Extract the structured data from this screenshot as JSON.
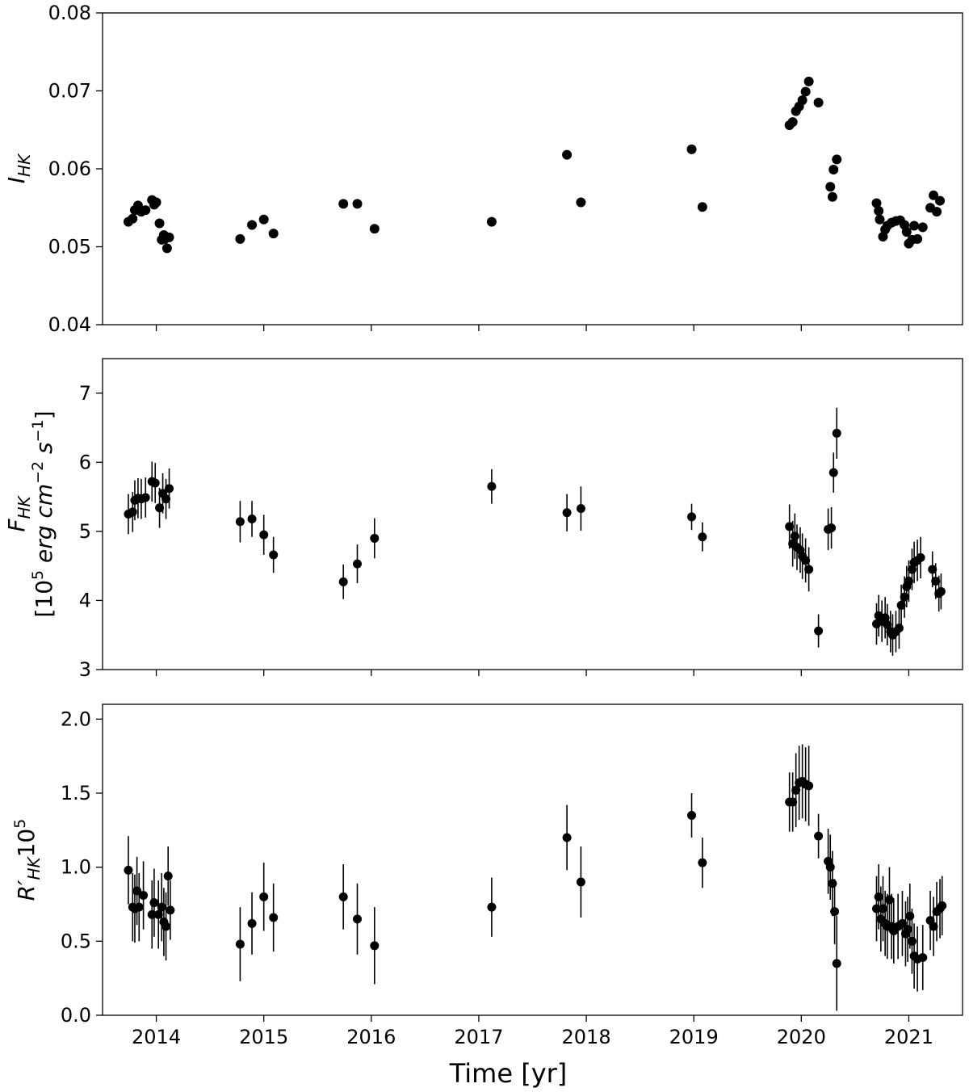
{
  "chart_data": [
    {
      "type": "scatter",
      "ylabel_parts": [
        "I",
        "HK"
      ],
      "ylim": [
        0.04,
        0.08
      ],
      "yticks": [
        "0.04",
        "0.05",
        "0.06",
        "0.07",
        "0.08"
      ],
      "xlim": [
        2013.5,
        2021.5
      ],
      "grid": false,
      "points": [
        [
          2013.74,
          0.0532
        ],
        [
          2013.78,
          0.0536
        ],
        [
          2013.8,
          0.0547
        ],
        [
          2013.83,
          0.0553
        ],
        [
          2013.86,
          0.0545
        ],
        [
          2013.9,
          0.0547
        ],
        [
          2013.96,
          0.056
        ],
        [
          2013.98,
          0.0554
        ],
        [
          2014.0,
          0.0557
        ],
        [
          2014.03,
          0.053
        ],
        [
          2014.05,
          0.0509
        ],
        [
          2014.07,
          0.0515
        ],
        [
          2014.1,
          0.0498
        ],
        [
          2014.12,
          0.0512
        ],
        [
          2014.08,
          0.051
        ],
        [
          2014.78,
          0.051
        ],
        [
          2014.89,
          0.0528
        ],
        [
          2015.0,
          0.0535
        ],
        [
          2015.09,
          0.0517
        ],
        [
          2015.74,
          0.0555
        ],
        [
          2015.87,
          0.0555
        ],
        [
          2016.03,
          0.0523
        ],
        [
          2017.12,
          0.0532
        ],
        [
          2017.82,
          0.0618
        ],
        [
          2017.95,
          0.0557
        ],
        [
          2018.98,
          0.0625
        ],
        [
          2019.08,
          0.0551
        ],
        [
          2019.89,
          0.0656
        ],
        [
          2019.92,
          0.066
        ],
        [
          2019.95,
          0.0674
        ],
        [
          2019.98,
          0.068
        ],
        [
          2020.01,
          0.0688
        ],
        [
          2020.04,
          0.0699
        ],
        [
          2020.07,
          0.0712
        ],
        [
          2020.16,
          0.0685
        ],
        [
          2020.27,
          0.0577
        ],
        [
          2020.29,
          0.0564
        ],
        [
          2020.3,
          0.0599
        ],
        [
          2020.33,
          0.0612
        ],
        [
          2020.7,
          0.0556
        ],
        [
          2020.72,
          0.0546
        ],
        [
          2020.73,
          0.0535
        ],
        [
          2020.76,
          0.0513
        ],
        [
          2020.78,
          0.0522
        ],
        [
          2020.8,
          0.0527
        ],
        [
          2020.84,
          0.0531
        ],
        [
          2020.88,
          0.0533
        ],
        [
          2020.92,
          0.0534
        ],
        [
          2020.96,
          0.0528
        ],
        [
          2020.98,
          0.0519
        ],
        [
          2021.0,
          0.0504
        ],
        [
          2021.03,
          0.0509
        ],
        [
          2021.05,
          0.0527
        ],
        [
          2021.08,
          0.051
        ],
        [
          2021.13,
          0.0525
        ],
        [
          2021.2,
          0.055
        ],
        [
          2021.23,
          0.0566
        ],
        [
          2021.26,
          0.0545
        ],
        [
          2021.29,
          0.0559
        ]
      ]
    },
    {
      "type": "scatter",
      "ylabel_parts": [
        "F",
        "HK",
        "[10",
        "5",
        " erg cm",
        "−2",
        " s",
        "−1",
        "]"
      ],
      "ylim": [
        3,
        7.5
      ],
      "yticks": [
        "3",
        "4",
        "5",
        "6",
        "7"
      ],
      "xlim": [
        2013.5,
        2021.5
      ],
      "grid": false,
      "points": [
        [
          2013.74,
          5.25,
          0.29
        ],
        [
          2013.78,
          5.28,
          0.29
        ],
        [
          2013.8,
          5.45,
          0.29
        ],
        [
          2013.83,
          5.48,
          0.29
        ],
        [
          2013.86,
          5.47,
          0.29
        ],
        [
          2013.9,
          5.49,
          0.29
        ],
        [
          2013.96,
          5.72,
          0.29
        ],
        [
          2013.99,
          5.7,
          0.29
        ],
        [
          2014.03,
          5.34,
          0.29
        ],
        [
          2014.06,
          5.55,
          0.29
        ],
        [
          2014.09,
          5.47,
          0.29
        ],
        [
          2014.12,
          5.62,
          0.29
        ],
        [
          2014.78,
          5.14,
          0.3
        ],
        [
          2014.89,
          5.18,
          0.26
        ],
        [
          2015.0,
          4.95,
          0.29
        ],
        [
          2015.09,
          4.66,
          0.26
        ],
        [
          2015.74,
          4.27,
          0.25
        ],
        [
          2015.87,
          4.53,
          0.28
        ],
        [
          2016.03,
          4.9,
          0.29
        ],
        [
          2017.12,
          5.65,
          0.25
        ],
        [
          2017.82,
          5.27,
          0.27
        ],
        [
          2017.95,
          5.33,
          0.32
        ],
        [
          2018.98,
          5.21,
          0.19
        ],
        [
          2019.08,
          4.92,
          0.21
        ],
        [
          2019.89,
          5.07,
          0.32
        ],
        [
          2019.92,
          4.82,
          0.33
        ],
        [
          2019.94,
          4.93,
          0.33
        ],
        [
          2019.96,
          4.77,
          0.33
        ],
        [
          2019.99,
          4.73,
          0.33
        ],
        [
          2020.01,
          4.64,
          0.33
        ],
        [
          2020.04,
          4.58,
          0.32
        ],
        [
          2020.07,
          4.45,
          0.32
        ],
        [
          2020.16,
          3.56,
          0.24
        ],
        [
          2020.25,
          5.03,
          0.3
        ],
        [
          2020.28,
          5.05,
          0.3
        ],
        [
          2020.3,
          5.85,
          0.29
        ],
        [
          2020.33,
          6.42,
          0.37
        ],
        [
          2020.7,
          3.66,
          0.3
        ],
        [
          2020.72,
          3.78,
          0.3
        ],
        [
          2020.75,
          3.7,
          0.3
        ],
        [
          2020.78,
          3.75,
          0.3
        ],
        [
          2020.8,
          3.65,
          0.3
        ],
        [
          2020.83,
          3.55,
          0.3
        ],
        [
          2020.85,
          3.5,
          0.3
        ],
        [
          2020.88,
          3.55,
          0.3
        ],
        [
          2020.91,
          3.6,
          0.3
        ],
        [
          2020.93,
          3.93,
          0.3
        ],
        [
          2020.96,
          4.05,
          0.3
        ],
        [
          2020.98,
          4.2,
          0.3
        ],
        [
          2021.0,
          4.28,
          0.3
        ],
        [
          2021.03,
          4.45,
          0.3
        ],
        [
          2021.05,
          4.55,
          0.3
        ],
        [
          2021.08,
          4.58,
          0.3
        ],
        [
          2021.11,
          4.62,
          0.3
        ],
        [
          2021.22,
          4.45,
          0.26
        ],
        [
          2021.25,
          4.28,
          0.26
        ],
        [
          2021.28,
          4.1,
          0.26
        ],
        [
          2021.3,
          4.13,
          0.26
        ]
      ]
    },
    {
      "type": "scatter",
      "ylabel_parts": [
        "R′",
        "HK",
        "10",
        "5"
      ],
      "ylim": [
        0.0,
        2.1
      ],
      "yticks": [
        "0.0",
        "0.5",
        "1.0",
        "1.5",
        "2.0"
      ],
      "xlim": [
        2013.5,
        2021.5
      ],
      "xticks": [
        "2014",
        "2015",
        "2016",
        "2017",
        "2018",
        "2019",
        "2020",
        "2021"
      ],
      "xlabel": "Time [yr]",
      "grid": false,
      "points": [
        [
          2013.74,
          0.98,
          0.23
        ],
        [
          2013.78,
          0.73,
          0.23
        ],
        [
          2013.8,
          0.72,
          0.23
        ],
        [
          2013.82,
          0.84,
          0.23
        ],
        [
          2013.84,
          0.73,
          0.23
        ],
        [
          2013.88,
          0.81,
          0.23
        ],
        [
          2013.96,
          0.68,
          0.23
        ],
        [
          2013.98,
          0.76,
          0.23
        ],
        [
          2014.02,
          0.68,
          0.23
        ],
        [
          2014.05,
          0.73,
          0.23
        ],
        [
          2014.07,
          0.63,
          0.23
        ],
        [
          2014.09,
          0.6,
          0.23
        ],
        [
          2014.11,
          0.94,
          0.2
        ],
        [
          2014.13,
          0.71,
          0.2
        ],
        [
          2014.78,
          0.48,
          0.25
        ],
        [
          2014.89,
          0.62,
          0.21
        ],
        [
          2015.0,
          0.8,
          0.23
        ],
        [
          2015.09,
          0.66,
          0.23
        ],
        [
          2015.74,
          0.8,
          0.22
        ],
        [
          2015.87,
          0.65,
          0.24
        ],
        [
          2016.03,
          0.47,
          0.26
        ],
        [
          2017.12,
          0.73,
          0.2
        ],
        [
          2017.82,
          1.2,
          0.22
        ],
        [
          2017.95,
          0.9,
          0.24
        ],
        [
          2018.98,
          1.35,
          0.15
        ],
        [
          2019.08,
          1.03,
          0.17
        ],
        [
          2019.89,
          1.44,
          0.2
        ],
        [
          2019.92,
          1.44,
          0.2
        ],
        [
          2019.95,
          1.52,
          0.25
        ],
        [
          2019.98,
          1.57,
          0.25
        ],
        [
          2020.01,
          1.58,
          0.25
        ],
        [
          2020.04,
          1.56,
          0.25
        ],
        [
          2020.07,
          1.55,
          0.27
        ],
        [
          2020.16,
          1.21,
          0.15
        ],
        [
          2020.25,
          1.04,
          0.22
        ],
        [
          2020.27,
          1.0,
          0.22
        ],
        [
          2020.29,
          0.89,
          0.22
        ],
        [
          2020.31,
          0.7,
          0.22
        ],
        [
          2020.33,
          0.35,
          0.32
        ],
        [
          2020.7,
          0.72,
          0.22
        ],
        [
          2020.72,
          0.8,
          0.22
        ],
        [
          2020.74,
          0.65,
          0.22
        ],
        [
          2020.76,
          0.72,
          0.22
        ],
        [
          2020.78,
          0.62,
          0.22
        ],
        [
          2020.8,
          0.6,
          0.22
        ],
        [
          2020.82,
          0.78,
          0.22
        ],
        [
          2020.84,
          0.6,
          0.22
        ],
        [
          2020.86,
          0.57,
          0.22
        ],
        [
          2020.9,
          0.6,
          0.22
        ],
        [
          2020.94,
          0.62,
          0.22
        ],
        [
          2020.97,
          0.55,
          0.22
        ],
        [
          2020.99,
          0.58,
          0.22
        ],
        [
          2021.01,
          0.67,
          0.22
        ],
        [
          2021.03,
          0.5,
          0.22
        ],
        [
          2021.05,
          0.4,
          0.22
        ],
        [
          2021.08,
          0.38,
          0.22
        ],
        [
          2021.13,
          0.39,
          0.22
        ],
        [
          2021.2,
          0.64,
          0.2
        ],
        [
          2021.23,
          0.6,
          0.2
        ],
        [
          2021.26,
          0.7,
          0.2
        ],
        [
          2021.29,
          0.72,
          0.2
        ],
        [
          2021.31,
          0.74,
          0.2
        ]
      ]
    }
  ]
}
